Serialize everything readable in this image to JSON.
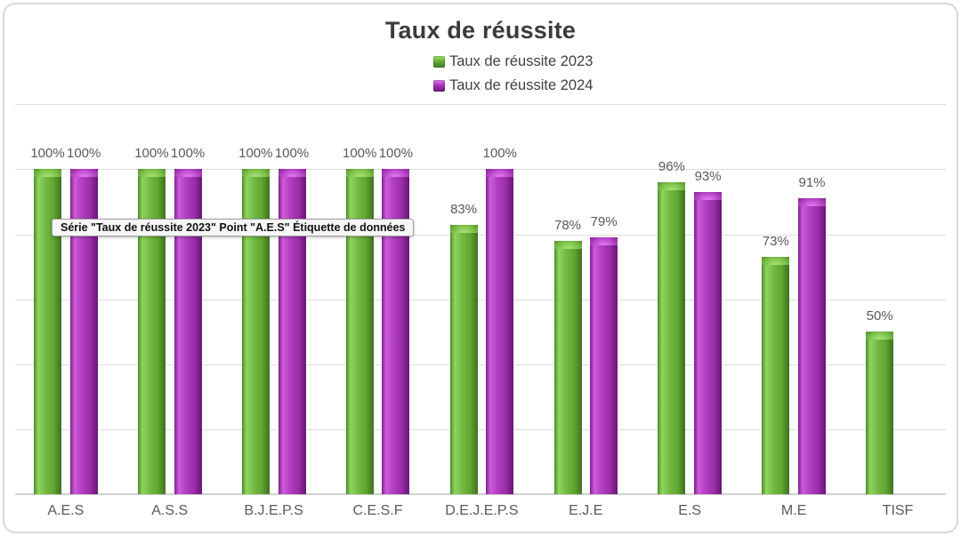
{
  "title": "Taux de réussite",
  "tooltip": {
    "text": "Série \"Taux de réussite 2023\" Point \"A.E.S\" Étiquette de données"
  },
  "chart_data": {
    "type": "bar",
    "title": "Taux de réussite",
    "categories": [
      "A.E.S",
      "A.S.S",
      "B.J.E.P.S",
      "C.E.S.F",
      "D.E.J.E.P.S",
      "E.J.E",
      "E.S",
      "M.E",
      "TISF"
    ],
    "series": [
      {
        "name": "Taux de réussite 2023",
        "color": "#6fb53e",
        "values": [
          100,
          100,
          100,
          100,
          83,
          78,
          96,
          73,
          50
        ]
      },
      {
        "name": "Taux de réussite 2024",
        "color": "#a935b8",
        "values": [
          100,
          100,
          100,
          100,
          100,
          79,
          93,
          91,
          null
        ]
      }
    ],
    "value_suffix": "%",
    "ylim": [
      0,
      120
    ],
    "gridline_step": 20,
    "grid": true,
    "y_axis_labels_visible": false,
    "data_labels_visible": true,
    "legend_position": "top-center"
  }
}
